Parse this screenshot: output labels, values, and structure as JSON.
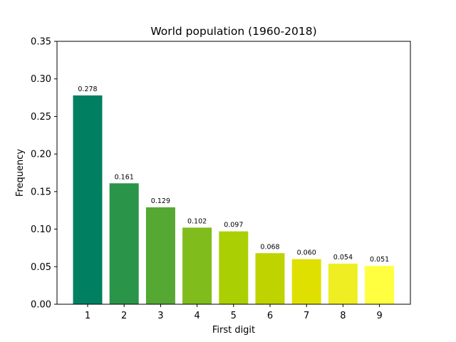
{
  "chart_data": {
    "type": "bar",
    "title": "World population (1960-2018)",
    "xlabel": "First digit",
    "ylabel": "Frequency",
    "categories": [
      "1",
      "2",
      "3",
      "4",
      "5",
      "6",
      "7",
      "8",
      "9"
    ],
    "values": [
      0.278,
      0.161,
      0.129,
      0.102,
      0.097,
      0.068,
      0.06,
      0.054,
      0.051
    ],
    "value_labels": [
      "0.278",
      "0.161",
      "0.129",
      "0.102",
      "0.097",
      "0.068",
      "0.060",
      "0.054",
      "0.051"
    ],
    "colors": [
      "#008060",
      "#2a9449",
      "#55a832",
      "#80bc1b",
      "#aad003",
      "#bfd300",
      "#dfe000",
      "#eeee22",
      "#ffff40"
    ],
    "ylim": [
      0,
      0.35
    ],
    "yticks": [
      0.0,
      0.05,
      0.1,
      0.15,
      0.2,
      0.25,
      0.3,
      0.35
    ],
    "ytick_labels": [
      "0.00",
      "0.05",
      "0.10",
      "0.15",
      "0.20",
      "0.25",
      "0.30",
      "0.35"
    ],
    "grid": false,
    "legend": "none"
  }
}
